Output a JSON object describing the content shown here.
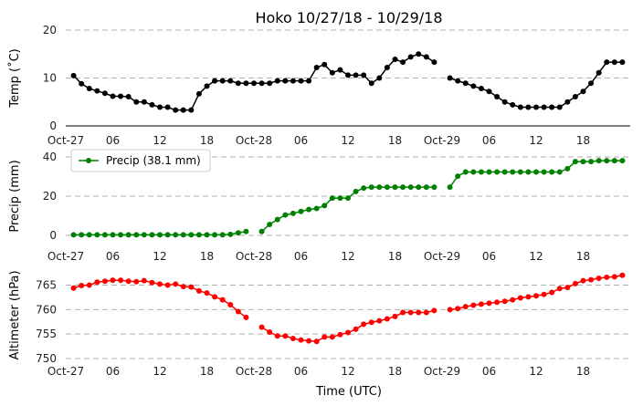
{
  "chart_data": [
    {
      "type": "line",
      "title": "Hoko 10/27/18 - 10/29/18",
      "ylabel": "Temp (˚C)",
      "xlabel": "",
      "x_start": "2018-10-27T00:00",
      "x_step_hours": 1,
      "ylim": [
        0,
        20
      ],
      "yticks": [
        0,
        10,
        20
      ],
      "xticks": [
        0,
        6,
        12,
        18,
        24,
        30,
        36,
        42,
        48,
        54,
        60,
        66
      ],
      "xtick_labels": [
        "Oct-27",
        "06",
        "12",
        "18",
        "Oct-28",
        "06",
        "12",
        "18",
        "Oct-29",
        "06",
        "12",
        "18"
      ],
      "grid": "horizontal dashed",
      "color": "#000000",
      "series": [
        {
          "name": "",
          "x": [
            1,
            2,
            3,
            4,
            5,
            6,
            7,
            8,
            9,
            10,
            11,
            12,
            13,
            14,
            15,
            16,
            17,
            18,
            19,
            20,
            21,
            22,
            23,
            24,
            25,
            26,
            27,
            28,
            29,
            30,
            31,
            32,
            33,
            34,
            35,
            36,
            37,
            38,
            39,
            40,
            41,
            42,
            43,
            44,
            45,
            46,
            47,
            48,
            49,
            50,
            51,
            52,
            53,
            54,
            55,
            56,
            57,
            58,
            59,
            60,
            61,
            62,
            63,
            64,
            65,
            66,
            67,
            68,
            69,
            70,
            71
          ],
          "values": [
            10.5,
            8.8,
            7.8,
            7.3,
            6.8,
            6.2,
            6.2,
            6.1,
            5.0,
            5.0,
            4.4,
            3.9,
            3.9,
            3.3,
            3.3,
            3.3,
            6.7,
            8.3,
            9.4,
            9.4,
            9.4,
            8.9,
            8.9,
            8.9,
            8.9,
            8.9,
            9.4,
            9.4,
            9.4,
            9.4,
            9.4,
            12.2,
            12.8,
            11.1,
            11.7,
            10.6,
            10.6,
            10.6,
            8.9,
            10.0,
            12.2,
            13.9,
            13.3,
            14.4,
            15.0,
            14.4,
            13.3,
            null,
            10.0,
            9.4,
            8.9,
            8.3,
            7.8,
            7.2,
            6.1,
            5.0,
            4.4,
            3.9,
            3.9,
            3.9,
            3.9,
            3.9,
            3.9,
            5.0,
            6.1,
            7.2,
            8.9,
            11.1,
            13.3,
            13.3,
            13.3
          ]
        }
      ]
    },
    {
      "type": "line",
      "title": "",
      "ylabel": "Precip (mm)",
      "xlabel": "",
      "ylim": [
        0,
        40
      ],
      "yticks": [
        0,
        20,
        40
      ],
      "xticks": [
        0,
        6,
        12,
        18,
        24,
        30,
        36,
        42,
        48,
        54,
        60,
        66
      ],
      "xtick_labels": [
        "Oct-27",
        "06",
        "12",
        "18",
        "Oct-28",
        "06",
        "12",
        "18",
        "Oct-29",
        "06",
        "12",
        "18"
      ],
      "grid": "horizontal dashed",
      "color": "#008000",
      "legend": "upper-left",
      "series": [
        {
          "name": "Precip (38.1 mm)",
          "x": [
            1,
            2,
            3,
            4,
            5,
            6,
            7,
            8,
            9,
            10,
            11,
            12,
            13,
            14,
            15,
            16,
            17,
            18,
            19,
            20,
            21,
            22,
            23,
            24,
            25,
            26,
            27,
            28,
            29,
            30,
            31,
            32,
            33,
            34,
            35,
            36,
            37,
            38,
            39,
            40,
            41,
            42,
            43,
            44,
            45,
            46,
            47,
            48,
            49,
            50,
            51,
            52,
            53,
            54,
            55,
            56,
            57,
            58,
            59,
            60,
            61,
            62,
            63,
            64,
            65,
            66,
            67,
            68,
            69,
            70,
            71
          ],
          "values": [
            0.3,
            0.3,
            0.3,
            0.3,
            0.3,
            0.3,
            0.3,
            0.3,
            0.3,
            0.3,
            0.3,
            0.3,
            0.3,
            0.3,
            0.3,
            0.3,
            0.3,
            0.3,
            0.3,
            0.3,
            0.5,
            1.3,
            2.0,
            null,
            2.0,
            5.6,
            8.1,
            10.4,
            11.2,
            12.2,
            13.2,
            13.7,
            15.2,
            19.0,
            19.0,
            19.0,
            22.4,
            24.1,
            24.6,
            24.6,
            24.6,
            24.6,
            24.6,
            24.6,
            24.6,
            24.6,
            24.6,
            null,
            24.6,
            30.2,
            32.3,
            32.3,
            32.3,
            32.3,
            32.3,
            32.3,
            32.3,
            32.3,
            32.3,
            32.3,
            32.3,
            32.3,
            32.3,
            34.0,
            37.6,
            37.6,
            37.6,
            38.1,
            38.1,
            38.1,
            38.1
          ]
        }
      ]
    },
    {
      "type": "line",
      "title": "",
      "ylabel": "Altimeter (hPa)",
      "xlabel": "Time (UTC)",
      "ylim": [
        750,
        767.7
      ],
      "yticks": [
        750,
        755,
        760,
        765
      ],
      "xticks": [
        0,
        6,
        12,
        18,
        24,
        30,
        36,
        42,
        48,
        54,
        60,
        66
      ],
      "xtick_labels": [
        "Oct-27",
        "06",
        "12",
        "18",
        "Oct-28",
        "06",
        "12",
        "18",
        "Oct-29",
        "06",
        "12",
        "18"
      ],
      "grid": "horizontal dashed",
      "color": "#ff0000",
      "series": [
        {
          "name": "",
          "x": [
            1,
            2,
            3,
            4,
            5,
            6,
            7,
            8,
            9,
            10,
            11,
            12,
            13,
            14,
            15,
            16,
            17,
            18,
            19,
            20,
            21,
            22,
            23,
            24,
            25,
            26,
            27,
            28,
            29,
            30,
            31,
            32,
            33,
            34,
            35,
            36,
            37,
            38,
            39,
            40,
            41,
            42,
            43,
            44,
            45,
            46,
            47,
            48,
            49,
            50,
            51,
            52,
            53,
            54,
            55,
            56,
            57,
            58,
            59,
            60,
            61,
            62,
            63,
            64,
            65,
            66,
            67,
            68,
            69,
            70,
            71
          ],
          "values": [
            764.4,
            764.9,
            765.0,
            765.6,
            765.8,
            766.0,
            766.0,
            765.8,
            765.7,
            765.9,
            765.5,
            765.2,
            765.0,
            765.2,
            764.7,
            764.6,
            763.8,
            763.4,
            762.6,
            762.0,
            761.0,
            759.6,
            758.4,
            null,
            756.4,
            755.4,
            754.6,
            754.6,
            754.1,
            753.8,
            753.6,
            753.5,
            754.4,
            754.4,
            754.9,
            755.3,
            756.0,
            757.0,
            757.4,
            757.7,
            758.1,
            758.6,
            759.4,
            759.4,
            759.4,
            759.4,
            759.8,
            null,
            760.0,
            760.2,
            760.6,
            760.9,
            761.1,
            761.3,
            761.5,
            761.7,
            762.0,
            762.4,
            762.6,
            762.8,
            763.1,
            763.5,
            764.3,
            764.5,
            765.3,
            765.9,
            766.1,
            766.4,
            766.6,
            766.7,
            767.0
          ]
        }
      ]
    }
  ]
}
